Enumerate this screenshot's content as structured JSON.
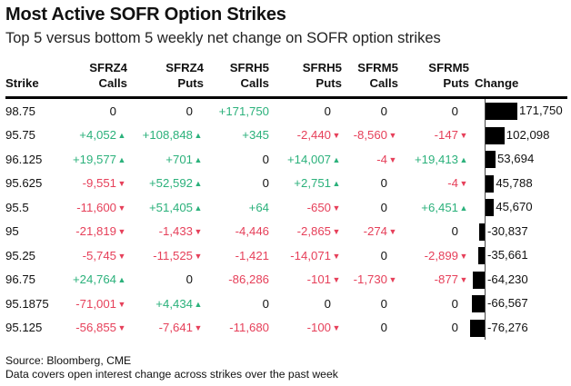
{
  "header": {
    "title": "Most Active SOFR Option Strikes",
    "subtitle": "Top 5 versus bottom 5 weekly net change on SOFR option strikes"
  },
  "colors": {
    "positive": "#2bb17b",
    "negative": "#e6405a",
    "bar": "#000000"
  },
  "columns": [
    {
      "line1": "",
      "line2": "Strike"
    },
    {
      "line1": "SFRZ4",
      "line2": "Calls"
    },
    {
      "line1": "SFRZ4",
      "line2": "Puts"
    },
    {
      "line1": "SFRH5",
      "line2": "Calls"
    },
    {
      "line1": "SFRH5",
      "line2": "Puts"
    },
    {
      "line1": "SFRM5",
      "line2": "Calls"
    },
    {
      "line1": "SFRM5",
      "line2": "Puts"
    },
    {
      "line1": "",
      "line2": "Change"
    }
  ],
  "arrow_columns": [
    true,
    true,
    false,
    true,
    true,
    true
  ],
  "chart_data": {
    "type": "table",
    "title": "Most Active SOFR Option Strikes",
    "subtitle": "Top 5 versus bottom 5 weekly net change on SOFR option strikes",
    "rows": [
      {
        "strike": "98.75",
        "values": [
          "0",
          "0",
          "+171,750",
          "0",
          "0",
          "0"
        ],
        "change": 171750,
        "change_label": "171,750"
      },
      {
        "strike": "95.75",
        "values": [
          "+4,052",
          "+108,848",
          "+345",
          "-2,440",
          "-8,560",
          "-147"
        ],
        "change": 102098,
        "change_label": "102,098"
      },
      {
        "strike": "96.125",
        "values": [
          "+19,577",
          "+701",
          "0",
          "+14,007",
          "-4",
          "+19,413"
        ],
        "change": 53694,
        "change_label": "53,694"
      },
      {
        "strike": "95.625",
        "values": [
          "-9,551",
          "+52,592",
          "0",
          "+2,751",
          "0",
          "-4"
        ],
        "change": 45788,
        "change_label": "45,788"
      },
      {
        "strike": "95.5",
        "values": [
          "-11,600",
          "+51,405",
          "+64",
          "-650",
          "0",
          "+6,451"
        ],
        "change": 45670,
        "change_label": "45,670"
      },
      {
        "strike": "95",
        "values": [
          "-21,819",
          "-1,433",
          "-4,446",
          "-2,865",
          "-274",
          "0"
        ],
        "change": -30837,
        "change_label": "-30,837"
      },
      {
        "strike": "95.25",
        "values": [
          "-5,745",
          "-11,525",
          "-1,421",
          "-14,071",
          "0",
          "-2,899"
        ],
        "change": -35661,
        "change_label": "-35,661"
      },
      {
        "strike": "96.75",
        "values": [
          "+24,764",
          "0",
          "-86,286",
          "-101",
          "-1,730",
          "-877"
        ],
        "change": -64230,
        "change_label": "-64,230"
      },
      {
        "strike": "95.1875",
        "values": [
          "-71,001",
          "+4,434",
          "0",
          "0",
          "0",
          "0"
        ],
        "change": -66567,
        "change_label": "-66,567"
      },
      {
        "strike": "95.125",
        "values": [
          "-56,855",
          "-7,641",
          "-11,680",
          "-100",
          "0",
          "0"
        ],
        "change": -76276,
        "change_label": "-76,276"
      }
    ],
    "change_range": [
      -76276,
      171750
    ]
  },
  "footer": {
    "source": "Source: Bloomberg, CME",
    "note": "Data covers open interest change across strikes over the past week"
  }
}
